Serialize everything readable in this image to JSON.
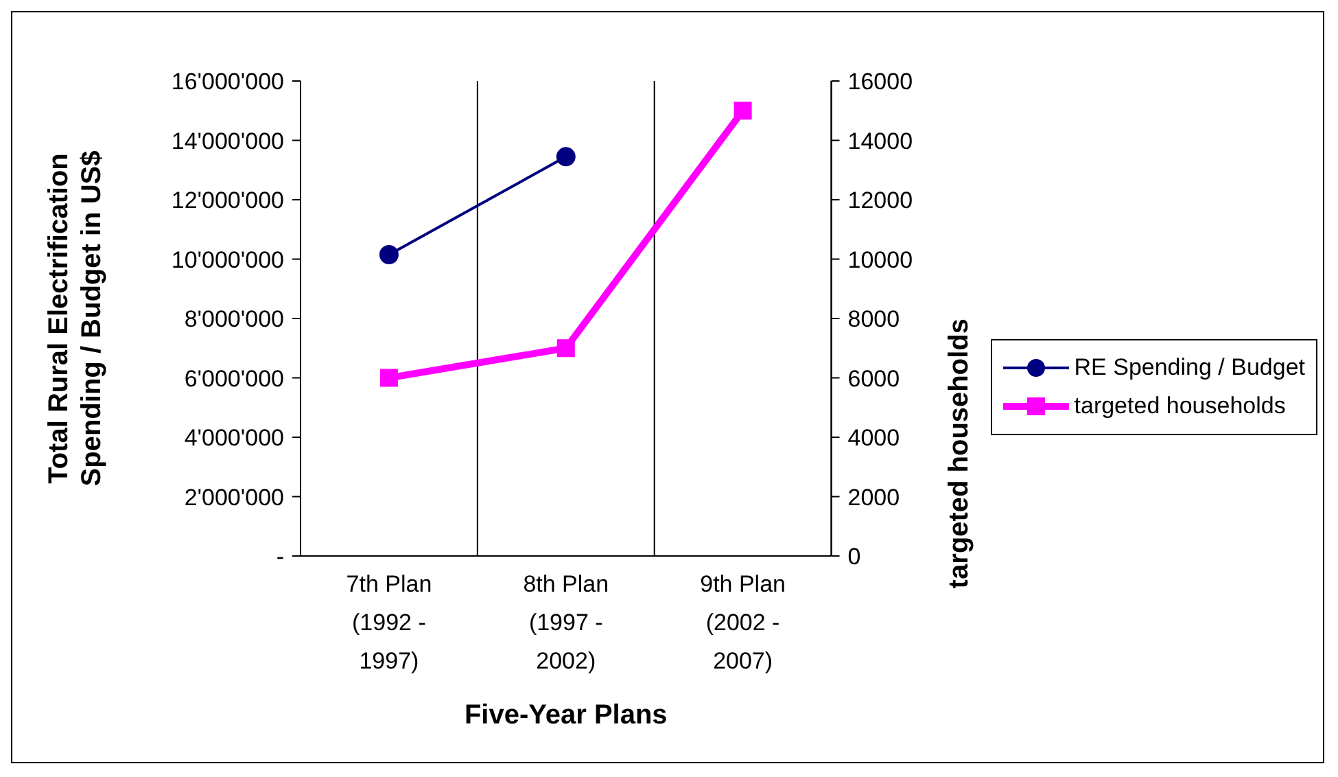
{
  "chart_data": {
    "type": "line",
    "xlabel": "Five-Year Plans",
    "ylabel": "Total Rural Electrification Spending / Budget in US$",
    "y2label": "targeted households",
    "categories": [
      "7th Plan (1992 - 1997)",
      "8th Plan (1997 - 2002)",
      "9th Plan (2002 - 2007)"
    ],
    "series": [
      {
        "name": "RE Spending / Budget",
        "color": "#000080",
        "values": [
          10150000,
          13450000,
          null
        ],
        "marker": "circle"
      },
      {
        "name": "targeted households",
        "color": "#ff00ff",
        "values": [
          6000,
          7000,
          15000
        ],
        "axis": "y2",
        "marker": "square"
      }
    ],
    "ylim": [
      0,
      16000000
    ],
    "yticks": [
      {
        "value": 0,
        "label": "-"
      },
      {
        "value": 2000000,
        "label": "2'000'000"
      },
      {
        "value": 4000000,
        "label": "4'000'000"
      },
      {
        "value": 6000000,
        "label": "6'000'000"
      },
      {
        "value": 8000000,
        "label": "8'000'000"
      },
      {
        "value": 10000000,
        "label": "10'000'000"
      },
      {
        "value": 12000000,
        "label": "12'000'000"
      },
      {
        "value": 14000000,
        "label": "14'000'000"
      },
      {
        "value": 16000000,
        "label": "16'000'000"
      }
    ],
    "y2lim": [
      0,
      16000
    ],
    "y2ticks": [
      0,
      2000,
      4000,
      6000,
      8000,
      10000,
      12000,
      14000,
      16000
    ],
    "grid": "x",
    "legend": "right"
  }
}
